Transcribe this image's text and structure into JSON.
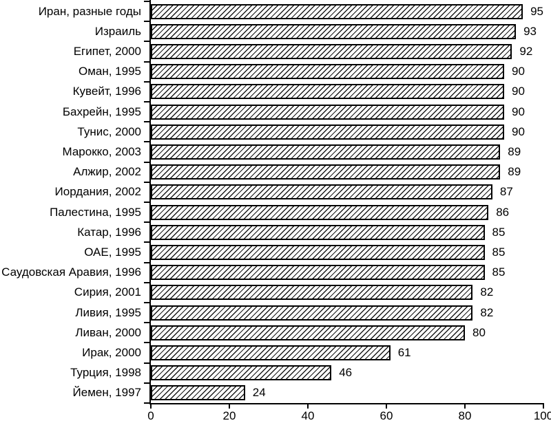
{
  "chart_data": {
    "type": "bar",
    "orientation": "horizontal",
    "title": "",
    "xlabel": "",
    "ylabel": "",
    "categories": [
      "Иран, разные годы",
      "Израиль",
      "Египет, 2000",
      "Оман, 1995",
      "Кувейт, 1996",
      "Бахрейн, 1995",
      "Тунис, 2000",
      "Марокко, 2003",
      "Алжир, 2002",
      "Иордания, 2002",
      "Палестина, 1995",
      "Катар, 1996",
      "ОАЕ, 1995",
      "Саудовская Аравия, 1996",
      "Сирия, 2001",
      "Ливия, 1995",
      "Ливан, 2000",
      "Ирак, 2000",
      "Турция, 1998",
      "Йемен, 1997"
    ],
    "values": [
      95,
      93,
      92,
      90,
      90,
      90,
      90,
      89,
      89,
      87,
      86,
      85,
      85,
      85,
      82,
      82,
      80,
      61,
      46,
      24
    ],
    "data_labels_shown": true,
    "xlim": [
      0,
      100
    ],
    "x_ticks": [
      0,
      20,
      40,
      60,
      80,
      100
    ],
    "grid": false,
    "legend": "none",
    "style": {
      "bar_fill": "#ffffff",
      "bar_hatch": "diagonal-forward-slash",
      "bar_border_color": "#000000",
      "axis_color": "#000000",
      "text_color": "#000000",
      "background": "#ffffff"
    }
  }
}
